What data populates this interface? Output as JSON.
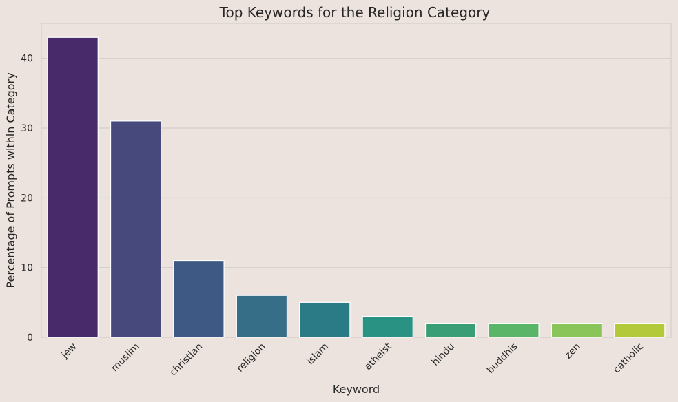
{
  "chart_data": {
    "type": "bar",
    "title": "Top Keywords for the Religion Category",
    "xlabel": "Keyword",
    "ylabel": "Percentage of Prompts within Category",
    "categories": [
      "jew",
      "muslim",
      "christian",
      "religion",
      "islam",
      "atheist",
      "hindu",
      "buddhis",
      "zen",
      "catholic"
    ],
    "values": [
      43,
      31,
      11,
      6,
      5,
      3,
      2,
      2,
      2,
      2
    ],
    "ylim": [
      0,
      45
    ],
    "yticks": [
      0,
      10,
      20,
      30,
      40
    ],
    "grid": true,
    "colors": [
      "#482a6a",
      "#47487c",
      "#3e5a84",
      "#366d87",
      "#2b7b86",
      "#2a9283",
      "#399d75",
      "#5bb569",
      "#8ac559",
      "#b4c93a"
    ],
    "background": "#ece3de",
    "grid_color": "#d5cdc9"
  }
}
